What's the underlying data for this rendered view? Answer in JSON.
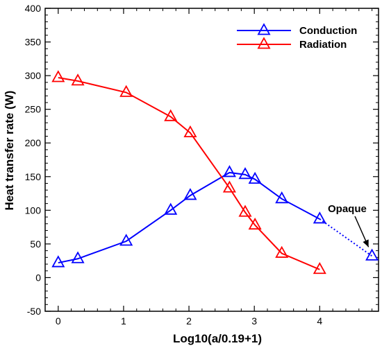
{
  "chart_data": {
    "type": "line",
    "xlabel": "Log10(a/0.19+1)",
    "ylabel": "Heat transfer rate (W)",
    "xlim": [
      -0.2,
      4.9
    ],
    "ylim": [
      -50,
      400
    ],
    "xticks": [
      0,
      1,
      2,
      3,
      4
    ],
    "yticks": [
      -50,
      0,
      50,
      100,
      150,
      200,
      250,
      300,
      350,
      400
    ],
    "legend_position": "top-right",
    "grid": false,
    "series": [
      {
        "name": "Conduction",
        "color": "#0000ff",
        "marker": "open-triangle",
        "x": [
          0.0,
          0.3,
          1.04,
          1.72,
          2.02,
          2.62,
          2.86,
          3.01,
          3.42,
          4.0
        ],
        "y": [
          22,
          28,
          54,
          100,
          122,
          156,
          153,
          146,
          117,
          87
        ]
      },
      {
        "name": "Radiation",
        "color": "#ff0000",
        "marker": "open-triangle",
        "x": [
          0.0,
          0.3,
          1.04,
          1.72,
          2.02,
          2.62,
          2.86,
          3.01,
          3.42,
          4.0
        ],
        "y": [
          297,
          292,
          275,
          239,
          215,
          133,
          97,
          78,
          36,
          12
        ]
      }
    ],
    "extension": {
      "series": "Conduction",
      "style": "dotted",
      "from": {
        "x": 4.0,
        "y": 87
      },
      "to": {
        "x": 4.8,
        "y": 32
      }
    },
    "annotation": {
      "text": "Opaque",
      "point": {
        "x": 4.8,
        "y": 32
      }
    }
  }
}
